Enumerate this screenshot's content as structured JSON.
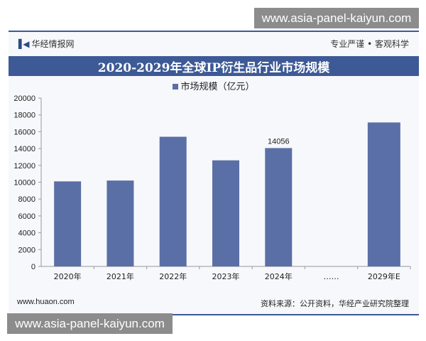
{
  "watermark": "www.asia-panel-kaiyun.com",
  "header": {
    "brand": "华经情报网",
    "slogan": "专业严谨 • 客观科学"
  },
  "footer": {
    "site": "www.huaon.com",
    "source": "资料来源：公开资料，华经产业研究院整理"
  },
  "chart_data": {
    "type": "bar",
    "title": "2020-2029年全球IP衍生品行业市场规模",
    "categories": [
      "2020年",
      "2021年",
      "2022年",
      "2023年",
      "2024年",
      "……",
      "2029年E"
    ],
    "series": [
      {
        "name": "市场规模（亿元）",
        "values": [
          10100,
          10200,
          15400,
          12600,
          14056,
          null,
          17100
        ]
      }
    ],
    "data_labels": {
      "4": "14056"
    },
    "ylim": [
      0,
      20000
    ],
    "yticks": [
      0,
      2000,
      4000,
      6000,
      8000,
      10000,
      12000,
      14000,
      16000,
      18000,
      20000
    ],
    "legend": "top",
    "grid": false,
    "color": "#5a6fa6"
  }
}
